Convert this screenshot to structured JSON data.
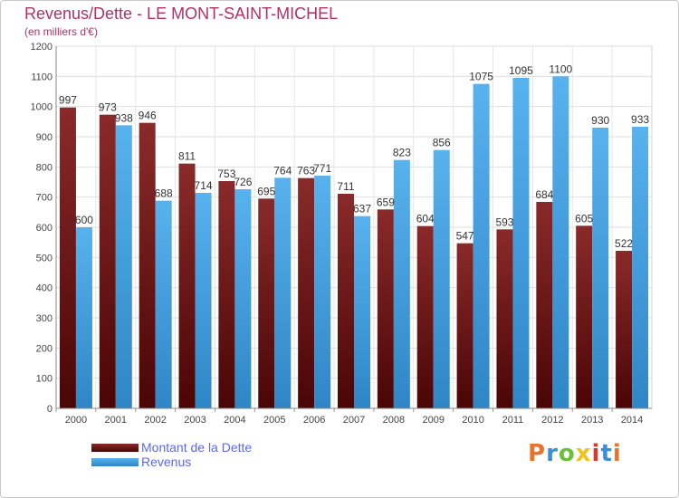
{
  "header": {
    "title": "Revenus/Dette - LE MONT-SAINT-MICHEL",
    "subtitle": "(en milliers d'€)"
  },
  "legend": {
    "items": [
      {
        "label": "Montant de la Dette",
        "color": "#7a1a1a"
      },
      {
        "label": "Revenus",
        "color": "#3b9de0"
      }
    ]
  },
  "brand": {
    "text": "Proxiti",
    "colors": [
      "#e8732a",
      "#3a8fd6",
      "#6bbf3a",
      "#f2c21d",
      "#d6392e",
      "#3a8fd6",
      "#e8732a"
    ]
  },
  "chart_data": {
    "type": "bar",
    "categories": [
      "2000",
      "2001",
      "2002",
      "2003",
      "2004",
      "2005",
      "2006",
      "2007",
      "2008",
      "2009",
      "2010",
      "2011",
      "2012",
      "2013",
      "2014"
    ],
    "series": [
      {
        "name": "Montant de la Dette",
        "color": "#7a1a1a",
        "values": [
          997,
          973,
          946,
          811,
          753,
          695,
          763,
          711,
          659,
          604,
          547,
          593,
          684,
          605,
          522
        ]
      },
      {
        "name": "Revenus",
        "color": "#3b9de0",
        "values": [
          600,
          938,
          688,
          714,
          726,
          764,
          771,
          637,
          823,
          856,
          1075,
          1095,
          1100,
          930,
          933
        ]
      }
    ],
    "yticks": [
      "0",
      "100",
      "200",
      "300",
      "400",
      "500",
      "600",
      "700",
      "800",
      "900",
      "1000",
      "1100",
      "1200"
    ],
    "ylim": [
      0,
      1200
    ],
    "grid": true,
    "legend_position": "bottom-left"
  }
}
